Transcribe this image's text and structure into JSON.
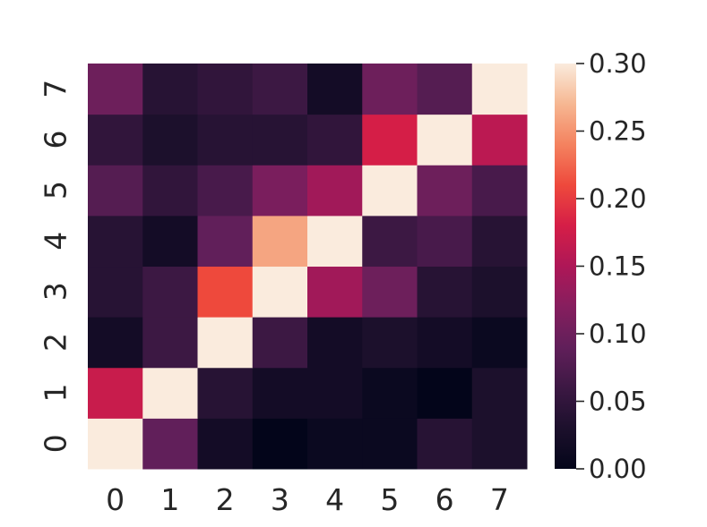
{
  "chart_data": {
    "type": "heatmap",
    "title": "",
    "xlabel": "",
    "ylabel": "",
    "x_categories": [
      "0",
      "1",
      "2",
      "3",
      "4",
      "5",
      "6",
      "7"
    ],
    "y_categories": [
      "0",
      "1",
      "2",
      "3",
      "4",
      "5",
      "6",
      "7"
    ],
    "y_order": "bottom-to-top",
    "values": [
      [
        0.3,
        0.09,
        0.02,
        0.0,
        0.01,
        0.01,
        0.04,
        0.03
      ],
      [
        0.17,
        0.3,
        0.04,
        0.02,
        0.02,
        0.01,
        0.0,
        0.03
      ],
      [
        0.02,
        0.06,
        0.3,
        0.06,
        0.02,
        0.03,
        0.02,
        0.01
      ],
      [
        0.04,
        0.06,
        0.21,
        0.3,
        0.14,
        0.1,
        0.04,
        0.03
      ],
      [
        0.04,
        0.02,
        0.09,
        0.26,
        0.3,
        0.06,
        0.07,
        0.04
      ],
      [
        0.08,
        0.05,
        0.07,
        0.11,
        0.14,
        0.3,
        0.1,
        0.07
      ],
      [
        0.05,
        0.03,
        0.04,
        0.04,
        0.05,
        0.18,
        0.3,
        0.16
      ],
      [
        0.1,
        0.04,
        0.05,
        0.06,
        0.02,
        0.1,
        0.08,
        0.3
      ]
    ],
    "vmin": 0.0,
    "vmax": 0.3,
    "colormap": "rocket",
    "colorbar": {
      "ticks": [
        0.0,
        0.05,
        0.1,
        0.15,
        0.2,
        0.25,
        0.3
      ],
      "tick_labels": [
        "0.00",
        "0.05",
        "0.10",
        "0.15",
        "0.20",
        "0.25",
        "0.30"
      ]
    },
    "grid": false
  }
}
